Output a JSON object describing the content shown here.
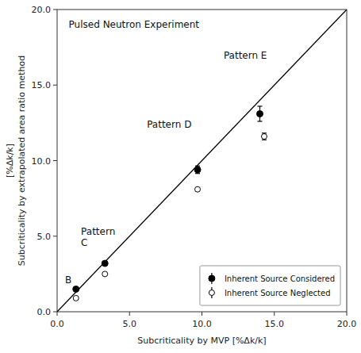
{
  "chart_data": {
    "type": "scatter",
    "title": "Pulsed Neutron Experiment",
    "x_label": "Subcriticality by MVP  [%Δk/k]",
    "y_label": "[%Δk/k]\nSubcriticality by extrapolated area ratio method",
    "xlim": [
      0.0,
      20.0
    ],
    "ylim": [
      0.0,
      20.0
    ],
    "xticks": [
      {
        "value": 0.0,
        "label": "0.0"
      },
      {
        "value": 5.0,
        "label": "5.0"
      },
      {
        "value": 10.0,
        "label": "10.0"
      },
      {
        "value": 15.0,
        "label": "15.0"
      },
      {
        "value": 20.0,
        "label": "20.0"
      }
    ],
    "yticks": [
      {
        "value": 0.0,
        "label": "0.0"
      },
      {
        "value": 5.0,
        "label": "5.0"
      },
      {
        "value": 10.0,
        "label": "10.0"
      },
      {
        "value": 15.0,
        "label": "15.0"
      },
      {
        "value": 20.0,
        "label": "20.0"
      }
    ],
    "grid": false,
    "legend": "lower right",
    "series": [
      {
        "type": "line",
        "color": "#000000",
        "x": [
          0,
          20
        ],
        "values": [
          0,
          20
        ]
      },
      {
        "name": "Inherent Source Considered",
        "type": "scatter",
        "marker": "filled-circle",
        "color": "#000000",
        "x": [
          1.3,
          3.3,
          9.7,
          14.0
        ],
        "values": [
          1.5,
          3.2,
          9.4,
          13.1
        ],
        "errors": [
          0.0,
          0.0,
          0.25,
          0.5
        ]
      },
      {
        "name": "Inherent Source Neglected",
        "type": "scatter",
        "marker": "open-circle",
        "color": "#000000",
        "x": [
          1.3,
          3.3,
          9.7,
          14.3
        ],
        "values": [
          0.9,
          2.5,
          8.1,
          11.6
        ],
        "errors": [
          0.0,
          0.0,
          0.0,
          0.22
        ]
      }
    ],
    "annotations": [
      {
        "text": "B",
        "x": 0.55,
        "y": 1.75
      },
      {
        "text": "Pattern\nC",
        "x": 1.65,
        "y": 4.2
      },
      {
        "text": "Pattern D",
        "x": 6.2,
        "y": 12.0
      },
      {
        "text": "Pattern E",
        "x": 11.5,
        "y": 16.6
      }
    ]
  }
}
